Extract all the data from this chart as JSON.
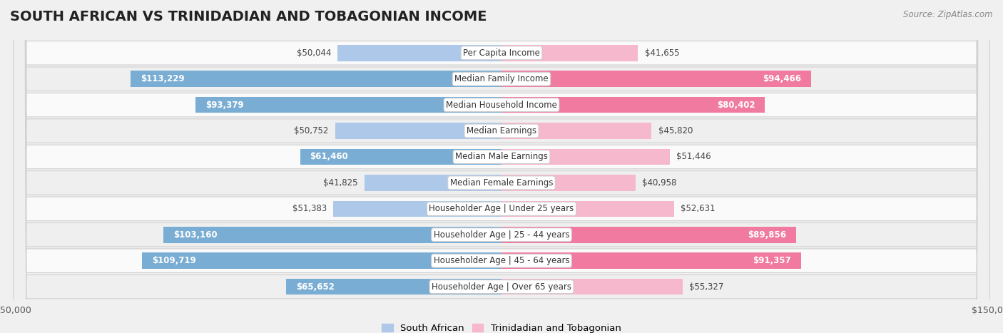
{
  "title": "SOUTH AFRICAN VS TRINIDADIAN AND TOBAGONIAN INCOME",
  "source": "Source: ZipAtlas.com",
  "categories": [
    "Per Capita Income",
    "Median Family Income",
    "Median Household Income",
    "Median Earnings",
    "Median Male Earnings",
    "Median Female Earnings",
    "Householder Age | Under 25 years",
    "Householder Age | 25 - 44 years",
    "Householder Age | 45 - 64 years",
    "Householder Age | Over 65 years"
  ],
  "south_african": [
    50044,
    113229,
    93379,
    50752,
    61460,
    41825,
    51383,
    103160,
    109719,
    65652
  ],
  "trinidadian": [
    41655,
    94466,
    80402,
    45820,
    51446,
    40958,
    52631,
    89856,
    91357,
    55327
  ],
  "max_val": 150000,
  "blue_color_light": "#adc8e8",
  "blue_color_dark": "#7aadd4",
  "pink_color_light": "#f5b8cc",
  "pink_color_dark": "#f07aa0",
  "bg_color": "#f0f0f0",
  "row_bg_light": "#fafafa",
  "row_bg_dark": "#efefef",
  "bar_height": 0.62,
  "label_fontsize": 8.5,
  "title_fontsize": 14,
  "legend_blue": "#adc8e8",
  "legend_pink": "#f5b8cc",
  "inside_label_threshold": 60000
}
